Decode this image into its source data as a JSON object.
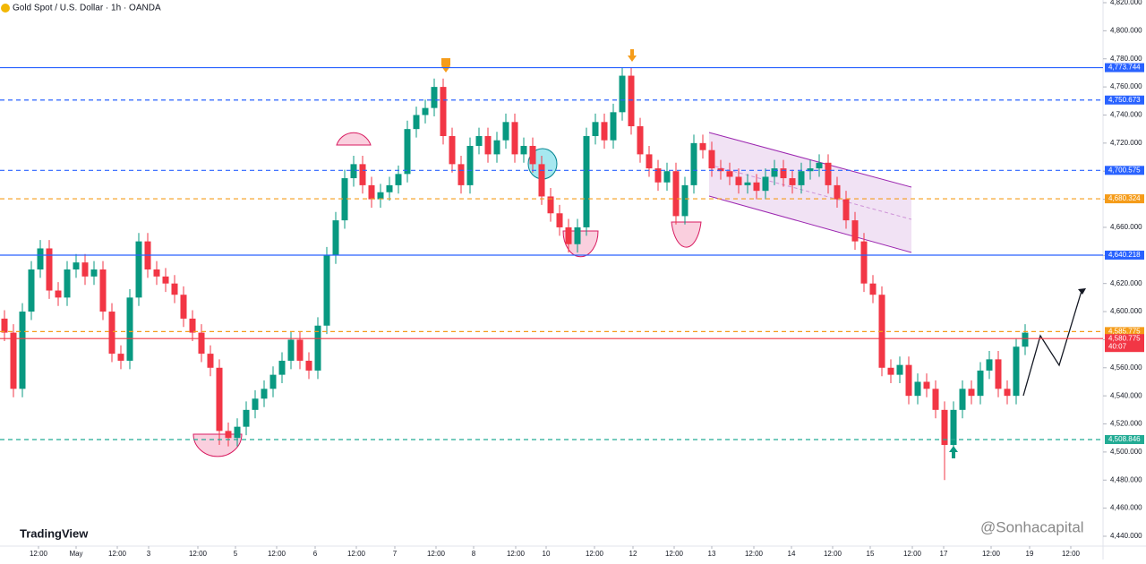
{
  "chart_data": {
    "type": "candlestick",
    "title": "Gold Spot / U.S. Dollar · 1h · OANDA",
    "watermark": "TradingView",
    "author": "@Sonhacapital",
    "up_color": "#089981",
    "down_color": "#f23645",
    "open": [
      4595,
      4585,
      4545,
      4600,
      4630,
      4645,
      4615,
      4610,
      4630,
      4635,
      4625,
      4630,
      4600,
      4570,
      4565,
      4610,
      4650,
      4630,
      4625,
      4620,
      4612,
      4595,
      4585,
      4570,
      4560,
      4515,
      4510,
      4518,
      4530,
      4538,
      4545,
      4555,
      4565,
      4580,
      4565,
      4558,
      4590,
      4640,
      4665,
      4695,
      4705,
      4690,
      4680,
      4685,
      4690,
      4698,
      4730,
      4740,
      4745,
      4760,
      4725,
      4705,
      4690,
      4718,
      4725,
      4712,
      4722,
      4735,
      4712,
      4718,
      4705,
      4682,
      4670,
      4660,
      4648,
      4660,
      4725,
      4735,
      4722,
      4742,
      4768,
      4732,
      4712,
      4702,
      4692,
      4700,
      4668,
      4690,
      4720,
      4715,
      4702,
      4700,
      4696,
      4690,
      4692,
      4686,
      4696,
      4702,
      4695,
      4690,
      4700,
      4702,
      4706,
      4690,
      4680,
      4665,
      4650,
      4620,
      4612,
      4560,
      4555,
      4562,
      4540,
      4550,
      4545,
      4530,
      4505,
      4530,
      4545,
      4540,
      4558,
      4566,
      4545,
      4540,
      4575
    ],
    "high": [
      4601,
      4591,
      4606,
      4636,
      4651,
      4651,
      4621,
      4636,
      4641,
      4641,
      4636,
      4636,
      4606,
      4576,
      4616,
      4656,
      4656,
      4636,
      4631,
      4626,
      4618,
      4601,
      4591,
      4576,
      4566,
      4521,
      4524,
      4536,
      4544,
      4551,
      4561,
      4571,
      4586,
      4586,
      4571,
      4596,
      4646,
      4671,
      4701,
      4711,
      4711,
      4696,
      4691,
      4696,
      4704,
      4736,
      4746,
      4751,
      4766,
      4766,
      4731,
      4711,
      4724,
      4731,
      4731,
      4728,
      4741,
      4741,
      4724,
      4724,
      4711,
      4688,
      4676,
      4666,
      4666,
      4731,
      4741,
      4741,
      4748,
      4774,
      4774,
      4738,
      4718,
      4708,
      4706,
      4706,
      4696,
      4726,
      4726,
      4721,
      4708,
      4706,
      4702,
      4698,
      4698,
      4702,
      4708,
      4708,
      4701,
      4706,
      4708,
      4712,
      4712,
      4696,
      4686,
      4671,
      4656,
      4626,
      4618,
      4566,
      4568,
      4568,
      4556,
      4556,
      4551,
      4536,
      4536,
      4551,
      4551,
      4564,
      4572,
      4572,
      4551,
      4581,
      4591
    ],
    "low": [
      4579,
      4539,
      4539,
      4594,
      4624,
      4609,
      4604,
      4604,
      4624,
      4619,
      4619,
      4594,
      4564,
      4559,
      4559,
      4604,
      4624,
      4619,
      4614,
      4606,
      4589,
      4579,
      4564,
      4554,
      4505,
      4504,
      4504,
      4512,
      4524,
      4532,
      4539,
      4549,
      4559,
      4559,
      4552,
      4552,
      4584,
      4634,
      4659,
      4689,
      4684,
      4674,
      4674,
      4679,
      4684,
      4692,
      4724,
      4734,
      4739,
      4719,
      4699,
      4684,
      4684,
      4712,
      4706,
      4706,
      4716,
      4706,
      4706,
      4699,
      4676,
      4664,
      4654,
      4642,
      4642,
      4654,
      4719,
      4716,
      4716,
      4736,
      4726,
      4706,
      4696,
      4686,
      4686,
      4662,
      4662,
      4684,
      4709,
      4696,
      4694,
      4690,
      4684,
      4684,
      4680,
      4680,
      4690,
      4689,
      4684,
      4684,
      4694,
      4696,
      4684,
      4674,
      4659,
      4644,
      4614,
      4606,
      4554,
      4549,
      4549,
      4534,
      4534,
      4539,
      4524,
      4480,
      4499,
      4524,
      4534,
      4534,
      4552,
      4539,
      4534,
      4534,
      4569
    ],
    "close": [
      4585,
      4545,
      4600,
      4630,
      4645,
      4615,
      4610,
      4630,
      4635,
      4625,
      4630,
      4600,
      4570,
      4565,
      4610,
      4650,
      4630,
      4625,
      4620,
      4612,
      4595,
      4585,
      4570,
      4560,
      4515,
      4510,
      4518,
      4530,
      4538,
      4545,
      4555,
      4565,
      4580,
      4565,
      4558,
      4590,
      4640,
      4665,
      4695,
      4705,
      4690,
      4680,
      4685,
      4690,
      4698,
      4730,
      4740,
      4745,
      4760,
      4725,
      4705,
      4690,
      4718,
      4725,
      4712,
      4722,
      4735,
      4712,
      4718,
      4705,
      4682,
      4670,
      4660,
      4648,
      4660,
      4725,
      4735,
      4722,
      4742,
      4768,
      4732,
      4712,
      4702,
      4692,
      4700,
      4668,
      4690,
      4720,
      4715,
      4702,
      4700,
      4696,
      4690,
      4692,
      4686,
      4696,
      4702,
      4695,
      4690,
      4700,
      4702,
      4706,
      4690,
      4680,
      4665,
      4650,
      4620,
      4612,
      4560,
      4555,
      4562,
      4540,
      4550,
      4545,
      4530,
      4505,
      4530,
      4545,
      4540,
      4558,
      4566,
      4545,
      4540,
      4575,
      4585
    ],
    "xlim": [
      -0.5,
      122.5
    ],
    "ylim": [
      4440,
      4820
    ],
    "xticks": [
      {
        "value": 3.8,
        "label": "12:00"
      },
      {
        "value": 8,
        "label": "May"
      },
      {
        "value": 12.6,
        "label": "12:00"
      },
      {
        "value": 16.1,
        "label": "3"
      },
      {
        "value": 21.6,
        "label": "12:00"
      },
      {
        "value": 25.8,
        "label": "5"
      },
      {
        "value": 30.4,
        "label": "12:00"
      },
      {
        "value": 34.7,
        "label": "6"
      },
      {
        "value": 39.3,
        "label": "12:00"
      },
      {
        "value": 43.6,
        "label": "7"
      },
      {
        "value": 48.2,
        "label": "12:00"
      },
      {
        "value": 52.4,
        "label": "8"
      },
      {
        "value": 57.1,
        "label": "12:00"
      },
      {
        "value": 60.5,
        "label": "10"
      },
      {
        "value": 65.9,
        "label": "12:00"
      },
      {
        "value": 70.2,
        "label": "12"
      },
      {
        "value": 74.8,
        "label": "12:00"
      },
      {
        "value": 79,
        "label": "13"
      },
      {
        "value": 83.7,
        "label": "12:00"
      },
      {
        "value": 87.9,
        "label": "14"
      },
      {
        "value": 92.5,
        "label": "12:00"
      },
      {
        "value": 96.7,
        "label": "15"
      },
      {
        "value": 101.4,
        "label": "12:00"
      },
      {
        "value": 104.9,
        "label": "17"
      },
      {
        "value": 110.2,
        "label": "12:00"
      },
      {
        "value": 114.5,
        "label": "19"
      },
      {
        "value": 119.1,
        "label": "12:00"
      }
    ],
    "yticks": [
      {
        "value": 4440,
        "label": "4,440.000"
      },
      {
        "value": 4460,
        "label": "4,460.000"
      },
      {
        "value": 4480,
        "label": "4,480.000"
      },
      {
        "value": 4500,
        "label": "4,500.000"
      },
      {
        "value": 4520,
        "label": "4,520.000"
      },
      {
        "value": 4540,
        "label": "4,540.000"
      },
      {
        "value": 4560,
        "label": "4,560.000"
      },
      {
        "value": 4580,
        "label": "4,580.000"
      },
      {
        "value": 4600,
        "label": "4,600.000"
      },
      {
        "value": 4620,
        "label": "4,620.000"
      },
      {
        "value": 4640,
        "label": "4,640.000"
      },
      {
        "value": 4660,
        "label": "4,660.000"
      },
      {
        "value": 4680,
        "label": "4,680.000"
      },
      {
        "value": 4700,
        "label": "4,700.000"
      },
      {
        "value": 4720,
        "label": "4,720.000"
      },
      {
        "value": 4740,
        "label": "4,740.000"
      },
      {
        "value": 4760,
        "label": "4,760.000"
      },
      {
        "value": 4780,
        "label": "4,780.000"
      },
      {
        "value": 4800,
        "label": "4,800.000"
      },
      {
        "value": 4820,
        "label": "4,820.000"
      }
    ],
    "levels": [
      {
        "value": 4773.744,
        "label": "4,773.744",
        "color": "#2962ff",
        "style": "solid"
      },
      {
        "value": 4750.673,
        "label": "4,750.673",
        "color": "#2962ff",
        "style": "dashed"
      },
      {
        "value": 4700.575,
        "label": "4,700.575",
        "color": "#2962ff",
        "style": "dashed"
      },
      {
        "value": 4680.324,
        "label": "4,680.324",
        "color": "#f59c1a",
        "style": "dashed"
      },
      {
        "value": 4640.218,
        "label": "4,640.218",
        "color": "#2962ff",
        "style": "solid"
      },
      {
        "value": 4585.775,
        "label": "4,585.775",
        "color": "#f59c1a",
        "style": "dashed"
      },
      {
        "value": 4580.775,
        "label": "4,580.775",
        "color": "#f23645",
        "style": "solid",
        "countdown": "40:07"
      },
      {
        "value": 4508.846,
        "label": "4,508.846",
        "color": "#22ab94",
        "style": "dashed"
      }
    ]
  }
}
